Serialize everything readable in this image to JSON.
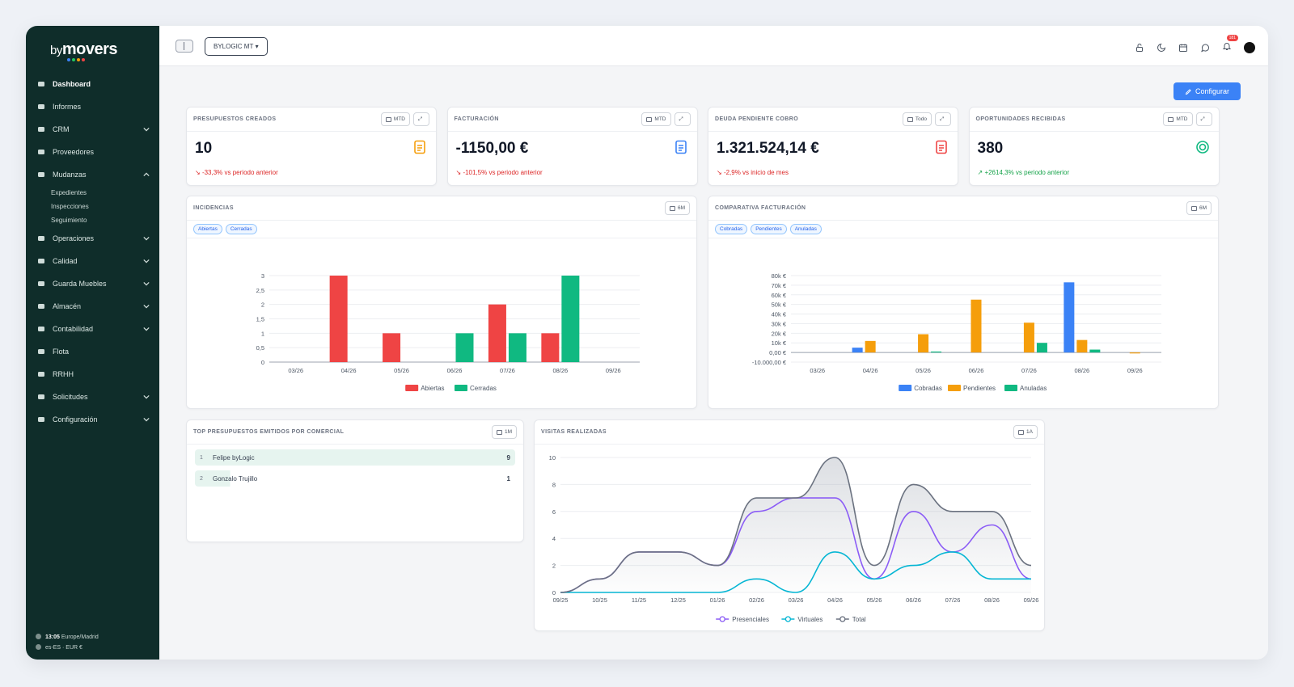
{
  "brand": {
    "prefix": "by",
    "name": "movers",
    "dot_colors": [
      "#3b82f6",
      "#22c55e",
      "#f59e0b",
      "#ef4444"
    ]
  },
  "sidebar": {
    "items": [
      {
        "label": "Dashboard",
        "icon": "gauge-icon",
        "active": true,
        "chevron": ""
      },
      {
        "label": "Informes",
        "icon": "file-icon",
        "chevron": ""
      },
      {
        "label": "CRM",
        "icon": "handshake-icon",
        "chevron": "down"
      },
      {
        "label": "Proveedores",
        "icon": "cart-icon",
        "chevron": ""
      },
      {
        "label": "Mudanzas",
        "icon": "truck-icon",
        "chevron": "up"
      },
      {
        "label": "Expedientes",
        "sub": true
      },
      {
        "label": "Inspecciones",
        "sub": true
      },
      {
        "label": "Seguimiento",
        "sub": true
      },
      {
        "label": "Operaciones",
        "icon": "calendar-icon",
        "chevron": "down"
      },
      {
        "label": "Calidad",
        "icon": "contrast-icon",
        "chevron": "down"
      },
      {
        "label": "Guarda Muebles",
        "icon": "warehouse-icon",
        "chevron": "down"
      },
      {
        "label": "Almacén",
        "icon": "boxes-icon",
        "chevron": "down"
      },
      {
        "label": "Contabilidad",
        "icon": "bank-icon",
        "chevron": "down"
      },
      {
        "label": "Flota",
        "icon": "car-icon",
        "chevron": ""
      },
      {
        "label": "RRHH",
        "icon": "user-icon",
        "chevron": ""
      },
      {
        "label": "Solicitudes",
        "icon": "list-icon",
        "chevron": "down"
      },
      {
        "label": "Configuración",
        "icon": "gears-icon",
        "chevron": "down"
      }
    ],
    "footer": {
      "time": "13:05",
      "timezone": "Europe/Madrid",
      "locale": "es-ES",
      "currency": "EUR €"
    }
  },
  "topbar": {
    "org_selector": "BYLOGIC MT",
    "notifications_count": "181"
  },
  "configure_button": "Configurar",
  "kpis": [
    {
      "title": "PRESUPUESTOS CREADOS",
      "period": "MTD",
      "value": "10",
      "trend": "-33,3% vs periodo anterior",
      "direction": "down",
      "icon": "document-icon",
      "color": "#f59e0b"
    },
    {
      "title": "FACTURACIÓN",
      "period": "MTD",
      "value": "-1150,00 €",
      "trend": "-101,5% vs periodo anterior",
      "direction": "down",
      "icon": "invoice-icon",
      "color": "#3b82f6"
    },
    {
      "title": "DEUDA PENDIENTE COBRO",
      "period": "Todo",
      "value": "1.321.524,14 €",
      "trend": "-2,9% vs inicio de mes",
      "direction": "down",
      "icon": "wallet-icon",
      "color": "#ef4444"
    },
    {
      "title": "OPORTUNIDADES RECIBIDAS",
      "period": "MTD",
      "value": "380",
      "trend": "+2614,3% vs periodo anterior",
      "direction": "up",
      "icon": "target-icon",
      "color": "#10b981"
    }
  ],
  "incidencias": {
    "title": "INCIDENCIAS",
    "period": "6M",
    "tags": [
      "Abiertas",
      "Cerradas"
    ],
    "chart_data": {
      "type": "bar",
      "categories": [
        "03/26",
        "04/26",
        "05/26",
        "06/26",
        "07/26",
        "08/26",
        "09/26"
      ],
      "series": [
        {
          "name": "Abiertas",
          "color": "#ef4444",
          "values": [
            0,
            3,
            1,
            0,
            2,
            1,
            0
          ]
        },
        {
          "name": "Cerradas",
          "color": "#10b981",
          "values": [
            0,
            0,
            0,
            1,
            1,
            3,
            0
          ]
        }
      ],
      "ylim": [
        0,
        3
      ],
      "yticks": [
        "0",
        "0,5",
        "1",
        "1,5",
        "2",
        "2,5",
        "3"
      ],
      "legend": "bottom"
    }
  },
  "comparativa": {
    "title": "COMPARATIVA FACTURACIÓN",
    "period": "6M",
    "tags": [
      "Cobradas",
      "Pendientes",
      "Anuladas"
    ],
    "chart_data": {
      "type": "bar",
      "categories": [
        "03/26",
        "04/26",
        "05/26",
        "06/26",
        "07/26",
        "08/26",
        "09/26"
      ],
      "series": [
        {
          "name": "Cobradas",
          "color": "#3b82f6",
          "values": [
            0,
            5000,
            0,
            0,
            0,
            73000,
            0
          ]
        },
        {
          "name": "Pendientes",
          "color": "#f59e0b",
          "values": [
            0,
            12000,
            19000,
            55000,
            31000,
            13000,
            -1000
          ]
        },
        {
          "name": "Anuladas",
          "color": "#10b981",
          "values": [
            0,
            0,
            1000,
            0,
            10000,
            3000,
            0
          ]
        }
      ],
      "ylim": [
        -10000,
        80000
      ],
      "yticks": [
        "-10.000,00 €",
        "0,00 €",
        "10k €",
        "20k €",
        "30k €",
        "40k €",
        "50k €",
        "60k €",
        "70k €",
        "80k €"
      ],
      "legend": "bottom"
    }
  },
  "top_comerciales": {
    "title": "TOP PRESUPUESTOS EMITIDOS POR COMERCIAL",
    "period": "1M",
    "rows": [
      {
        "rank": "1",
        "name": "Felipe byLogic",
        "count": "9",
        "share": 1.0
      },
      {
        "rank": "2",
        "name": "Gonzalo Trujillo",
        "count": "1",
        "share": 0.11
      }
    ]
  },
  "visitas": {
    "title": "VISITAS REALIZADAS",
    "period": "1A",
    "chart_data": {
      "type": "area",
      "x": [
        "09/25",
        "10/25",
        "11/25",
        "12/25",
        "01/26",
        "02/26",
        "03/26",
        "04/26",
        "05/26",
        "06/26",
        "07/26",
        "08/26",
        "09/26"
      ],
      "series": [
        {
          "name": "Presenciales",
          "color": "#8b5cf6",
          "values": [
            0,
            1,
            3,
            3,
            2,
            6,
            7,
            7,
            1,
            6,
            3,
            5,
            1
          ]
        },
        {
          "name": "Virtuales",
          "color": "#06b6d4",
          "values": [
            0,
            0,
            0,
            0,
            0,
            1,
            0,
            3,
            1,
            2,
            3,
            1,
            1
          ]
        },
        {
          "name": "Total",
          "color": "#6b7280",
          "values": [
            0,
            1,
            3,
            3,
            2,
            7,
            7,
            10,
            2,
            8,
            6,
            6,
            2
          ]
        }
      ],
      "ylim": [
        0,
        10
      ],
      "yticks": [
        "0",
        "2",
        "4",
        "6",
        "8",
        "10"
      ],
      "legend": "bottom"
    }
  }
}
